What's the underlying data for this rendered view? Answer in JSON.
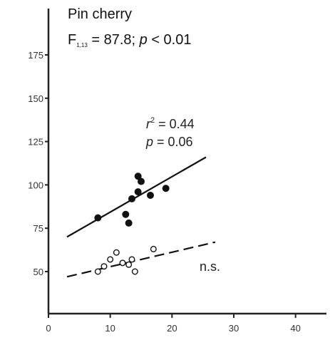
{
  "chart_data": {
    "type": "scatter",
    "title": "Pin cherry",
    "stat_main": "F",
    "stat_sub": "1,13",
    "stat_rest": " = 87.8; ",
    "stat_p": "p",
    "stat_p_rest": " < 0.01",
    "xlim": [
      0,
      45
    ],
    "ylim": [
      25,
      200
    ],
    "x_ticks": [
      0,
      10,
      20,
      30,
      40
    ],
    "x_tick_labels": [
      "0",
      "10",
      "20",
      "30",
      "40"
    ],
    "y_ticks": [
      50,
      75,
      100,
      125,
      150,
      175
    ],
    "y_tick_labels": [
      "50",
      "75",
      "100",
      "125",
      "150",
      "175"
    ],
    "grid": false,
    "xlabel": "",
    "ylabel": "",
    "series": [
      {
        "marker": "filled",
        "points": [
          {
            "x": 8,
            "y": 81
          },
          {
            "x": 12.5,
            "y": 83
          },
          {
            "x": 13,
            "y": 78
          },
          {
            "x": 13.5,
            "y": 92
          },
          {
            "x": 14.5,
            "y": 96
          },
          {
            "x": 14.5,
            "y": 105
          },
          {
            "x": 15,
            "y": 102
          },
          {
            "x": 16.5,
            "y": 94
          },
          {
            "x": 19,
            "y": 98
          }
        ],
        "fit": {
          "x": [
            3,
            25.5
          ],
          "y": [
            70,
            116
          ],
          "style": "solid"
        },
        "annotation_r": "r",
        "annotation_r_exp": "2",
        "annotation_r_rest": " = 0.44",
        "annotation_p": "p",
        "annotation_p_rest": " = 0.06"
      },
      {
        "marker": "open",
        "points": [
          {
            "x": 8,
            "y": 50
          },
          {
            "x": 9,
            "y": 53
          },
          {
            "x": 10,
            "y": 57
          },
          {
            "x": 11,
            "y": 61
          },
          {
            "x": 12,
            "y": 55
          },
          {
            "x": 13,
            "y": 54
          },
          {
            "x": 13.5,
            "y": 57
          },
          {
            "x": 14,
            "y": 50
          },
          {
            "x": 17,
            "y": 63
          }
        ],
        "fit": {
          "x": [
            3,
            27
          ],
          "y": [
            47,
            67
          ],
          "style": "dashed"
        },
        "annotation": "n.s."
      }
    ],
    "colors": {
      "ink": "#111111",
      "axis": "#222222",
      "open_fill": "#ffffff"
    }
  }
}
